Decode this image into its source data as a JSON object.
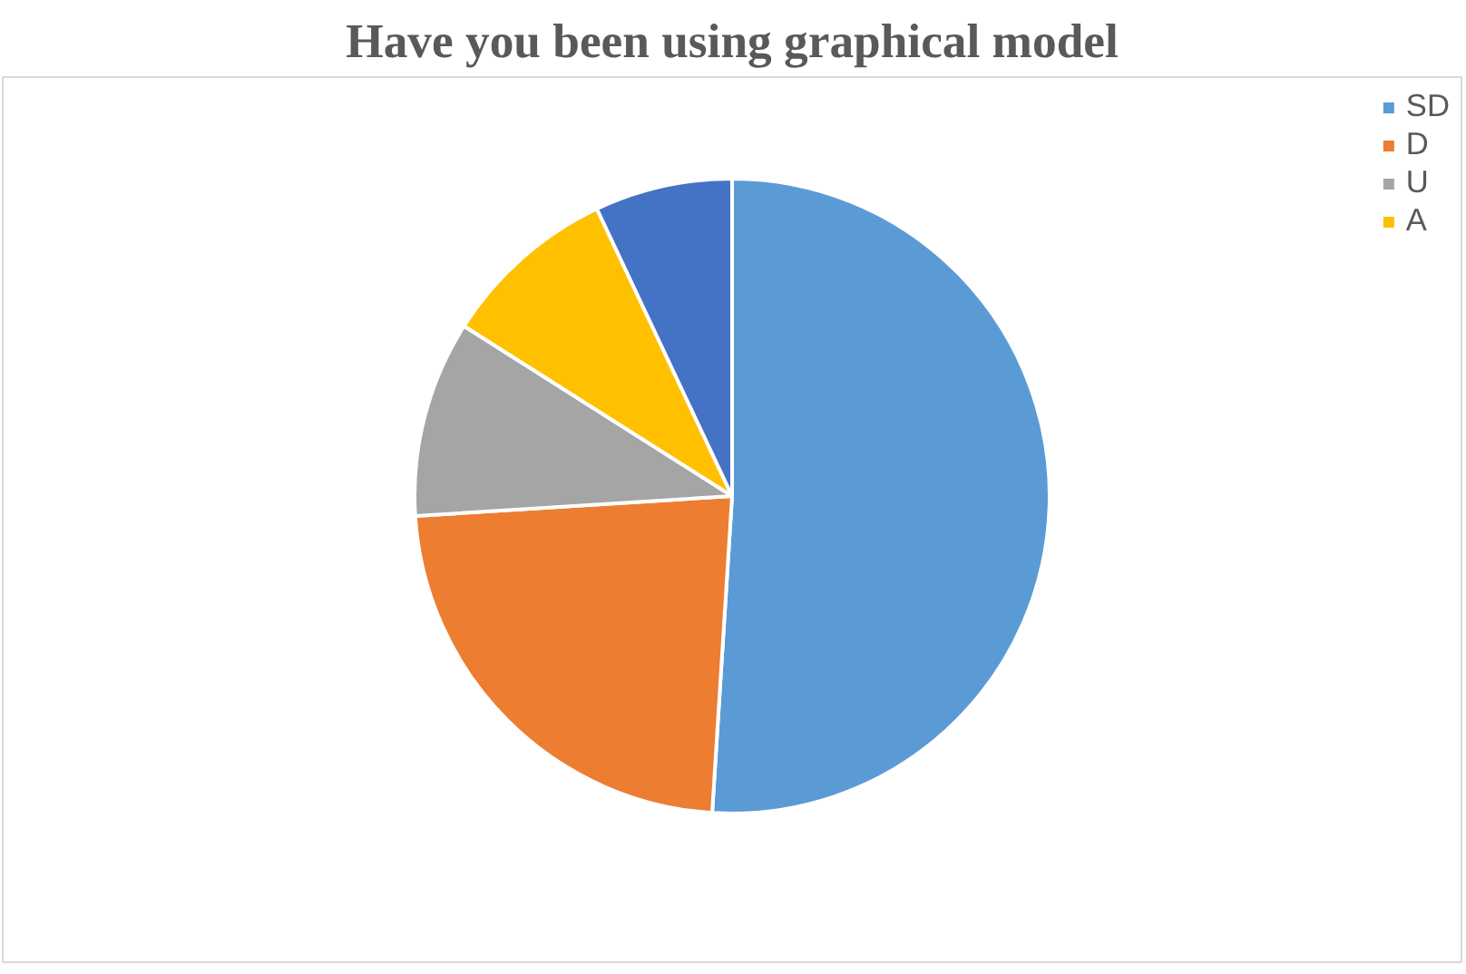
{
  "chart_data": {
    "type": "pie",
    "title": "Have you been using graphical model",
    "categories": [
      "SD",
      "D",
      "U",
      "A",
      null
    ],
    "values": [
      51,
      23,
      10,
      9,
      7
    ],
    "colors": [
      "#5b9bd5",
      "#ed7d31",
      "#a5a5a5",
      "#ffc000",
      "#4472c4"
    ],
    "legend": "top right"
  }
}
